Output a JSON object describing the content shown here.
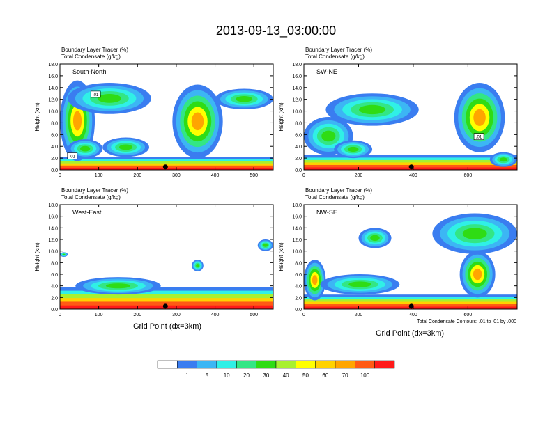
{
  "figure": {
    "title": "2013-09-13_03:00:00",
    "xlabel": "Grid Point (dx=3km)",
    "contour_note": "Total Condensate Contours: .01 to .01 by .000"
  },
  "colorbar": {
    "colors": [
      "#ffffff",
      "#3a7df0",
      "#3cb6f4",
      "#30f0e6",
      "#33e685",
      "#2fdc14",
      "#a8f030",
      "#ffff00",
      "#ffd200",
      "#ffa500",
      "#ff5a14",
      "#ff1a1a"
    ],
    "labels": [
      "1",
      "5",
      "10",
      "20",
      "30",
      "40",
      "50",
      "60",
      "70",
      "100"
    ]
  },
  "chart_data": [
    {
      "type": "heatmap",
      "panel_label": "South-North",
      "header_lines": [
        "Boundary Layer Tracer   (%)",
        "Total Condensate   (g/kg)"
      ],
      "ylabel": "Height (km)",
      "ylim": [
        0,
        18
      ],
      "yticks": [
        "0.0",
        "2.0",
        "4.0",
        "6.0",
        "8.0",
        "10.0",
        "12.0",
        "14.0",
        "16.0",
        "18.0"
      ],
      "xlim": [
        0,
        550
      ],
      "xticks": [
        "0",
        "100",
        "200",
        "300",
        "400",
        "500"
      ],
      "marker_x": 272,
      "contour_labels": [
        {
          "text": ".01",
          "x": 92,
          "y": 12.8
        },
        {
          "text": ".01",
          "x": 32,
          "y": 2.3
        }
      ],
      "blobs": [
        {
          "x0": 0,
          "x1": 550,
          "top": 2.2,
          "kind": "base"
        },
        {
          "x0": 0,
          "x1": 90,
          "top": 15.2,
          "kind": "tower",
          "bottom": 1.5
        },
        {
          "x0": 20,
          "x1": 235,
          "top": 14.8,
          "kind": "cloud",
          "bottom": 9.5
        },
        {
          "x0": 20,
          "x1": 110,
          "top": 5.2,
          "kind": "cloud",
          "bottom": 2.0
        },
        {
          "x0": 110,
          "x1": 230,
          "top": 5.5,
          "kind": "cloud",
          "bottom": 2.2
        },
        {
          "x0": 290,
          "x1": 420,
          "top": 14.5,
          "kind": "tower",
          "bottom": 2.0
        },
        {
          "x0": 400,
          "x1": 550,
          "top": 13.8,
          "kind": "cloud",
          "bottom": 10.3
        }
      ]
    },
    {
      "type": "heatmap",
      "panel_label": "SW-NE",
      "header_lines": [
        "Boundary Layer Tracer   (%)",
        "Total Condensate   (g/kg)"
      ],
      "ylabel": "Height (km)",
      "ylim": [
        0,
        18
      ],
      "yticks": [
        "0.0",
        "2.0",
        "4.0",
        "6.0",
        "8.0",
        "10.0",
        "12.0",
        "14.0",
        "16.0",
        "18.0"
      ],
      "xlim": [
        0,
        780
      ],
      "xticks": [
        "0",
        "200",
        "400",
        "600"
      ],
      "marker_x": 393,
      "contour_labels": [
        {
          "text": ".01",
          "x": 640,
          "y": 5.6
        }
      ],
      "blobs": [
        {
          "x0": 0,
          "x1": 780,
          "top": 2.5,
          "kind": "base"
        },
        {
          "x0": 0,
          "x1": 180,
          "top": 9.0,
          "kind": "cloud",
          "bottom": 2.5
        },
        {
          "x0": 80,
          "x1": 420,
          "top": 13.0,
          "kind": "cloud",
          "bottom": 7.5
        },
        {
          "x0": 110,
          "x1": 250,
          "top": 5.0,
          "kind": "cloud",
          "bottom": 2.0
        },
        {
          "x0": 550,
          "x1": 735,
          "top": 14.8,
          "kind": "tower",
          "bottom": 3.0
        },
        {
          "x0": 680,
          "x1": 780,
          "top": 3.0,
          "kind": "cloud",
          "bottom": 0.5
        }
      ]
    },
    {
      "type": "heatmap",
      "panel_label": "West-East",
      "header_lines": [
        "Boundary Layer Tracer   (%)",
        "Total Condensate   (g/kg)"
      ],
      "ylabel": "Height (km)",
      "ylim": [
        0,
        18
      ],
      "yticks": [
        "0.0",
        "2.0",
        "4.0",
        "6.0",
        "8.0",
        "10.0",
        "12.0",
        "14.0",
        "16.0",
        "18.0"
      ],
      "xlim": [
        0,
        550
      ],
      "xticks": [
        "0",
        "100",
        "200",
        "300",
        "400",
        "500"
      ],
      "marker_x": 272,
      "contour_labels": [],
      "blobs": [
        {
          "x0": 0,
          "x1": 550,
          "top": 3.8,
          "kind": "base"
        },
        {
          "x0": 40,
          "x1": 260,
          "top": 5.5,
          "kind": "cloud",
          "bottom": 2.5
        },
        {
          "x0": 0,
          "x1": 20,
          "top": 9.8,
          "kind": "cloud",
          "bottom": 9.0
        },
        {
          "x0": 340,
          "x1": 370,
          "top": 8.5,
          "kind": "cloud",
          "bottom": 6.5
        },
        {
          "x0": 510,
          "x1": 550,
          "top": 12.0,
          "kind": "cloud",
          "bottom": 10.0
        }
      ]
    },
    {
      "type": "heatmap",
      "panel_label": "NW-SE",
      "header_lines": [
        "Boundary Layer Tracer   (%)",
        "Total Condensate   (g/kg)"
      ],
      "ylabel": "Height (km)",
      "ylim": [
        0,
        18
      ],
      "yticks": [
        "0.0",
        "2.0",
        "4.0",
        "6.0",
        "8.0",
        "10.0",
        "12.0",
        "14.0",
        "16.0",
        "18.0"
      ],
      "xlim": [
        0,
        780
      ],
      "xticks": [
        "0",
        "200",
        "400",
        "600"
      ],
      "marker_x": 393,
      "contour_labels": [],
      "blobs": [
        {
          "x0": 0,
          "x1": 780,
          "top": 2.5,
          "kind": "base"
        },
        {
          "x0": 0,
          "x1": 80,
          "top": 8.5,
          "kind": "tower",
          "bottom": 1.5
        },
        {
          "x0": 60,
          "x1": 350,
          "top": 6.0,
          "kind": "cloud",
          "bottom": 2.5
        },
        {
          "x0": 200,
          "x1": 320,
          "top": 14.0,
          "kind": "cloud",
          "bottom": 10.5
        },
        {
          "x0": 470,
          "x1": 780,
          "top": 16.5,
          "kind": "cloud",
          "bottom": 9.5
        },
        {
          "x0": 570,
          "x1": 700,
          "top": 10.0,
          "kind": "tower",
          "bottom": 2.0
        }
      ]
    }
  ]
}
